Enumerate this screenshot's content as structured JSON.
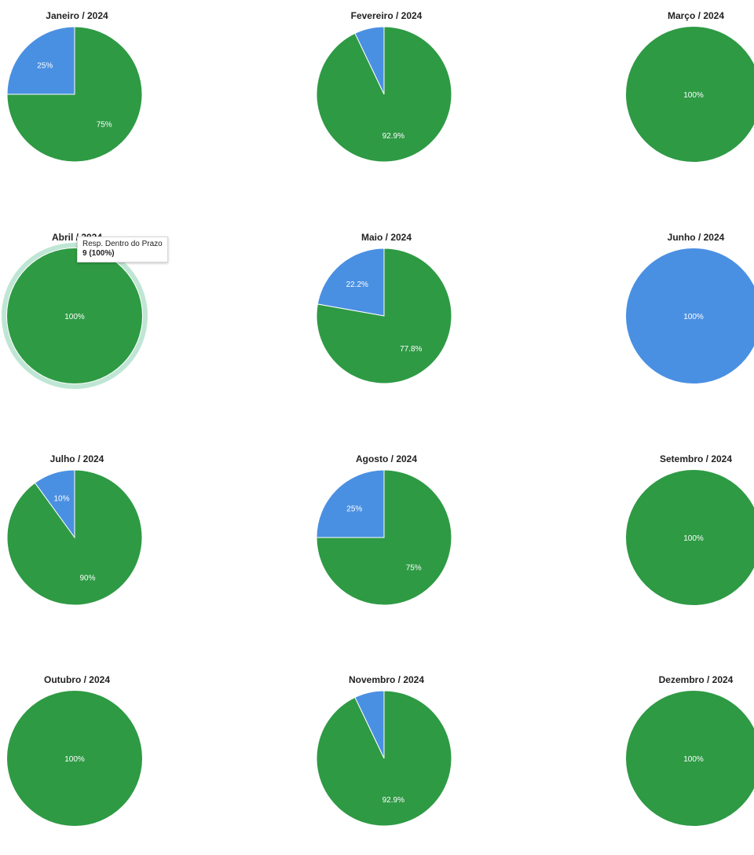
{
  "colors": {
    "inside": "#2e9a44",
    "outside": "#4a90e2",
    "highlight_ring": "#bfe6d4"
  },
  "chart_data": [
    {
      "type": "pie",
      "title": "Janeiro / 2024",
      "slices": [
        {
          "color": "outside",
          "value": 25,
          "label": "25%"
        },
        {
          "color": "inside",
          "value": 75,
          "label": "75%"
        }
      ]
    },
    {
      "type": "pie",
      "title": "Fevereiro / 2024",
      "slices": [
        {
          "color": "outside",
          "value": 7.1,
          "label": ""
        },
        {
          "color": "inside",
          "value": 92.9,
          "label": "92.9%"
        }
      ]
    },
    {
      "type": "pie",
      "title": "Março / 2024",
      "slices": [
        {
          "color": "inside",
          "value": 100,
          "label": "100%"
        }
      ]
    },
    {
      "type": "pie",
      "title": "Abril / 2024",
      "slices": [
        {
          "color": "inside",
          "value": 100,
          "label": "100%"
        }
      ],
      "highlighted": true
    },
    {
      "type": "pie",
      "title": "Maio / 2024",
      "slices": [
        {
          "color": "outside",
          "value": 22.2,
          "label": "22.2%"
        },
        {
          "color": "inside",
          "value": 77.8,
          "label": "77.8%"
        }
      ]
    },
    {
      "type": "pie",
      "title": "Junho / 2024",
      "slices": [
        {
          "color": "outside",
          "value": 100,
          "label": "100%"
        }
      ]
    },
    {
      "type": "pie",
      "title": "Julho / 2024",
      "slices": [
        {
          "color": "outside",
          "value": 10,
          "label": "10%"
        },
        {
          "color": "inside",
          "value": 90,
          "label": "90%"
        }
      ]
    },
    {
      "type": "pie",
      "title": "Agosto / 2024",
      "slices": [
        {
          "color": "outside",
          "value": 25,
          "label": "25%"
        },
        {
          "color": "inside",
          "value": 75,
          "label": "75%"
        }
      ]
    },
    {
      "type": "pie",
      "title": "Setembro / 2024",
      "slices": [
        {
          "color": "inside",
          "value": 100,
          "label": "100%"
        }
      ]
    },
    {
      "type": "pie",
      "title": "Outubro / 2024",
      "slices": [
        {
          "color": "inside",
          "value": 100,
          "label": "100%"
        }
      ]
    },
    {
      "type": "pie",
      "title": "Novembro / 2024",
      "slices": [
        {
          "color": "outside",
          "value": 7.1,
          "label": ""
        },
        {
          "color": "inside",
          "value": 92.9,
          "label": "92.9%"
        }
      ]
    },
    {
      "type": "pie",
      "title": "Dezembro / 2024",
      "slices": [
        {
          "color": "inside",
          "value": 100,
          "label": "100%"
        }
      ]
    }
  ],
  "tooltip": {
    "series": "Resp. Dentro do Prazo",
    "value": "9 (100%)"
  }
}
